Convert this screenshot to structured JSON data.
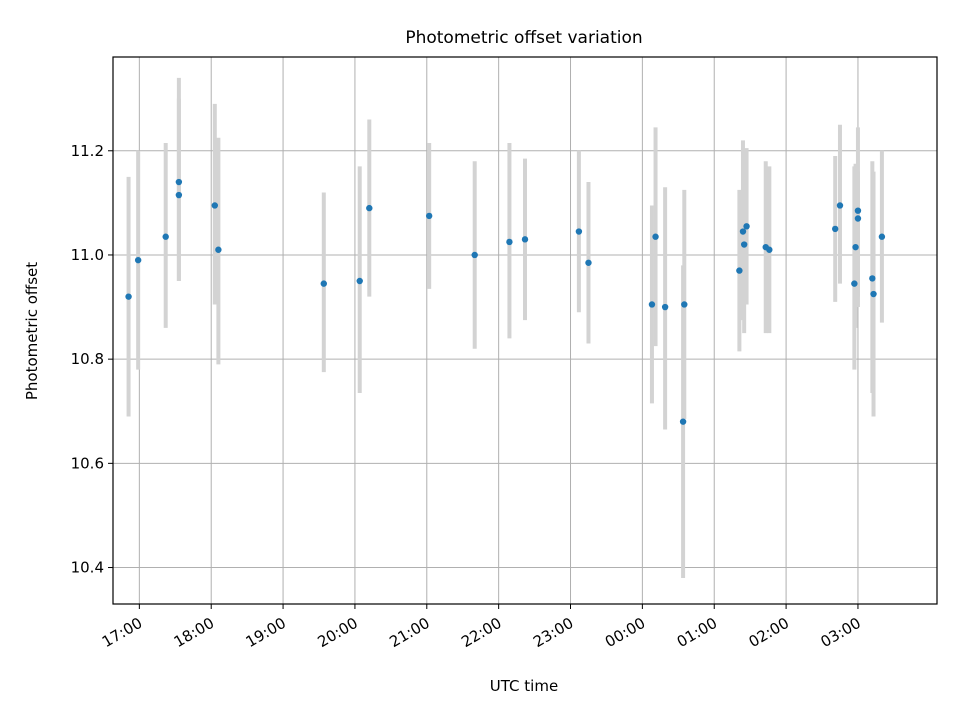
{
  "chart_data": {
    "type": "scatter",
    "title": "Photometric offset variation",
    "xlabel": "UTC time",
    "ylabel": "Photometric offset",
    "xlim": [
      "16:38",
      "04:06"
    ],
    "ylim": [
      10.33,
      11.38
    ],
    "xticks": [
      "17:00",
      "18:00",
      "19:00",
      "20:00",
      "21:00",
      "22:00",
      "23:00",
      "00:00",
      "01:00",
      "02:00",
      "03:00"
    ],
    "yticks": [
      "10.4",
      "10.6",
      "10.8",
      "11.0",
      "11.2"
    ],
    "ytick_values": [
      10.4,
      10.6,
      10.8,
      11.0,
      11.2
    ],
    "grid": true,
    "colors": {
      "points": "#1f77b4",
      "errorbars": "#d3d3d3",
      "grid": "#b0b0b0"
    },
    "series": [
      {
        "points": [
          {
            "x": "16:51",
            "y": 10.92,
            "lo": 10.69,
            "hi": 11.15
          },
          {
            "x": "16:59",
            "y": 10.99,
            "lo": 10.78,
            "hi": 11.2
          },
          {
            "x": "17:22",
            "y": 11.035,
            "lo": 10.86,
            "hi": 11.215
          },
          {
            "x": "17:33",
            "y": 11.14,
            "lo": 10.95,
            "hi": 11.34
          },
          {
            "x": "17:33",
            "y": 11.115,
            "lo": 10.95,
            "hi": 11.3
          },
          {
            "x": "18:03",
            "y": 11.095,
            "lo": 10.905,
            "hi": 11.29
          },
          {
            "x": "18:06",
            "y": 11.01,
            "lo": 10.79,
            "hi": 11.225
          },
          {
            "x": "19:34",
            "y": 10.945,
            "lo": 10.775,
            "hi": 11.12
          },
          {
            "x": "20:04",
            "y": 10.95,
            "lo": 10.735,
            "hi": 11.17
          },
          {
            "x": "20:12",
            "y": 11.09,
            "lo": 10.92,
            "hi": 11.26
          },
          {
            "x": "21:02",
            "y": 11.075,
            "lo": 10.935,
            "hi": 11.215
          },
          {
            "x": "21:40",
            "y": 11.0,
            "lo": 10.82,
            "hi": 11.18
          },
          {
            "x": "22:09",
            "y": 11.025,
            "lo": 10.84,
            "hi": 11.215
          },
          {
            "x": "22:22",
            "y": 11.03,
            "lo": 10.875,
            "hi": 11.185
          },
          {
            "x": "23:07",
            "y": 11.045,
            "lo": 10.89,
            "hi": 11.2
          },
          {
            "x": "23:15",
            "y": 10.985,
            "lo": 10.83,
            "hi": 11.14
          },
          {
            "x": "00:08",
            "y": 10.905,
            "lo": 10.715,
            "hi": 11.095
          },
          {
            "x": "00:11",
            "y": 11.035,
            "lo": 10.825,
            "hi": 11.245
          },
          {
            "x": "00:19",
            "y": 10.9,
            "lo": 10.665,
            "hi": 11.13
          },
          {
            "x": "00:34",
            "y": 10.68,
            "lo": 10.38,
            "hi": 10.98
          },
          {
            "x": "00:35",
            "y": 10.905,
            "lo": 10.685,
            "hi": 11.125
          },
          {
            "x": "01:21",
            "y": 10.97,
            "lo": 10.815,
            "hi": 11.125
          },
          {
            "x": "01:24",
            "y": 11.045,
            "lo": 10.875,
            "hi": 11.22
          },
          {
            "x": "01:25",
            "y": 11.02,
            "lo": 10.85,
            "hi": 11.19
          },
          {
            "x": "01:27",
            "y": 11.055,
            "lo": 10.905,
            "hi": 11.205
          },
          {
            "x": "01:43",
            "y": 11.015,
            "lo": 10.85,
            "hi": 11.18
          },
          {
            "x": "01:46",
            "y": 11.01,
            "lo": 10.85,
            "hi": 11.17
          },
          {
            "x": "02:41",
            "y": 11.05,
            "lo": 10.91,
            "hi": 11.19
          },
          {
            "x": "02:45",
            "y": 11.095,
            "lo": 10.945,
            "hi": 11.25
          },
          {
            "x": "02:57",
            "y": 10.945,
            "lo": 10.78,
            "hi": 11.17
          },
          {
            "x": "02:58",
            "y": 11.015,
            "lo": 10.86,
            "hi": 11.175
          },
          {
            "x": "03:00",
            "y": 11.085,
            "lo": 10.92,
            "hi": 11.245
          },
          {
            "x": "03:00",
            "y": 11.07,
            "lo": 10.9,
            "hi": 11.16
          },
          {
            "x": "03:12",
            "y": 10.955,
            "lo": 10.735,
            "hi": 11.18
          },
          {
            "x": "03:13",
            "y": 10.925,
            "lo": 10.69,
            "hi": 11.16
          },
          {
            "x": "03:20",
            "y": 11.035,
            "lo": 10.87,
            "hi": 11.2
          }
        ]
      }
    ]
  }
}
